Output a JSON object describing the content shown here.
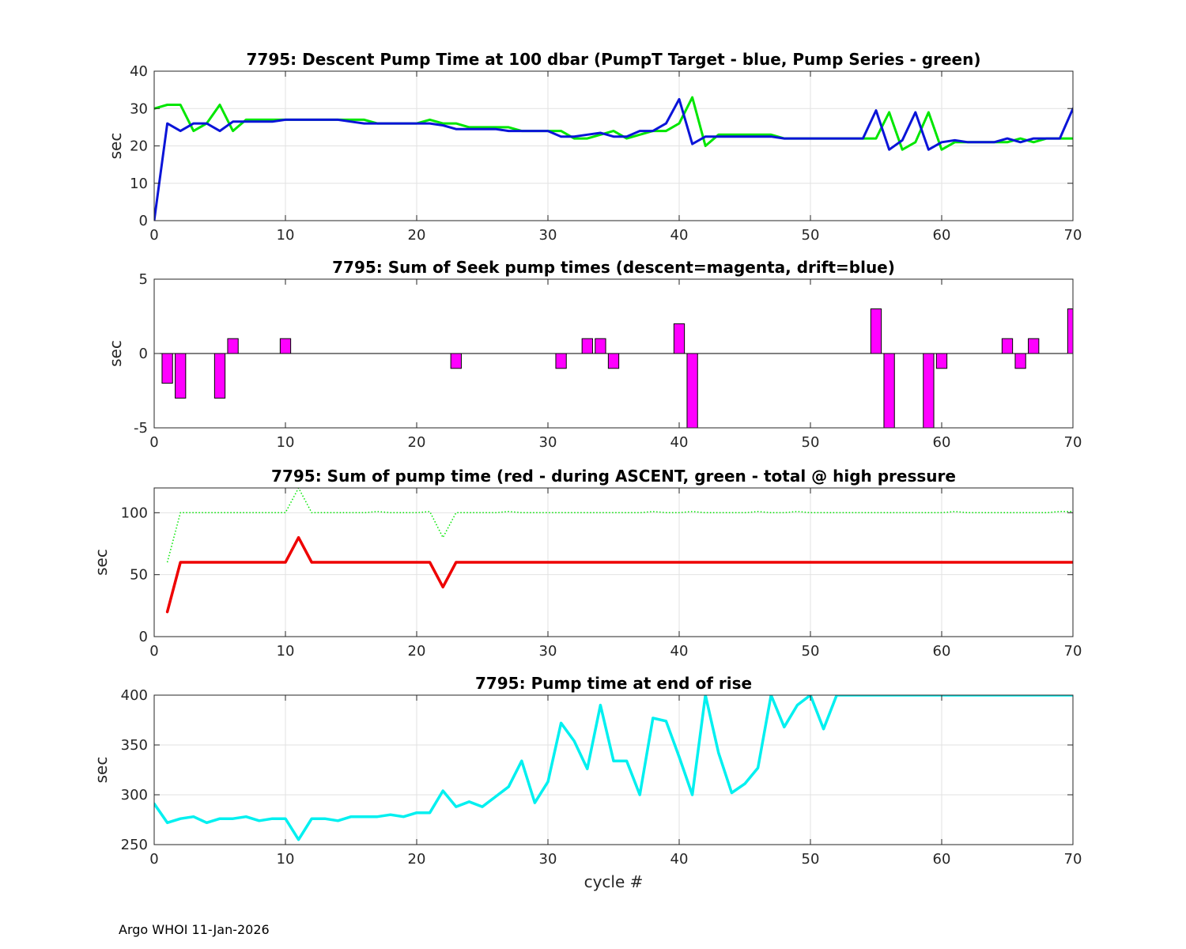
{
  "footer": "Argo WHOI 11-Jan-2026",
  "chart_data": [
    {
      "type": "line",
      "title": "7795: Descent Pump Time at 100 dbar (PumpT Target - blue, Pump Series - green)",
      "xlabel": "",
      "ylabel": "sec",
      "xlim": [
        0,
        70
      ],
      "ylim": [
        0,
        40
      ],
      "xticks": [
        0,
        10,
        20,
        30,
        40,
        50,
        60,
        70
      ],
      "yticks": [
        0,
        10,
        20,
        30,
        40
      ],
      "grid": true,
      "series": [
        {
          "color": "#00e600",
          "width": 3,
          "style": "solid",
          "x": [
            0,
            1,
            2,
            3,
            4,
            5,
            6,
            7,
            8,
            9,
            10,
            11,
            12,
            13,
            14,
            15,
            16,
            17,
            18,
            19,
            20,
            21,
            22,
            23,
            24,
            25,
            26,
            27,
            28,
            29,
            30,
            31,
            32,
            33,
            34,
            35,
            36,
            37,
            38,
            39,
            40,
            41,
            42,
            43,
            44,
            45,
            46,
            47,
            48,
            49,
            50,
            51,
            52,
            53,
            54,
            55,
            56,
            57,
            58,
            59,
            60,
            61,
            62,
            63,
            64,
            65,
            66,
            67,
            68,
            69,
            70
          ],
          "values": [
            30,
            31,
            31,
            24,
            26,
            31,
            24,
            27,
            27,
            27,
            27,
            27,
            27,
            27,
            27,
            27,
            27,
            26,
            26,
            26,
            26,
            27,
            26,
            26,
            25,
            25,
            25,
            25,
            24,
            24,
            24,
            24,
            22,
            22,
            23,
            24,
            22,
            23,
            24,
            24,
            26,
            33,
            20,
            23,
            23,
            23,
            23,
            23,
            22,
            22,
            22,
            22,
            22,
            22,
            22,
            22,
            29,
            19,
            21,
            29,
            19,
            21,
            21,
            21,
            21,
            21,
            22,
            21,
            22,
            22,
            22
          ]
        },
        {
          "color": "#0a14d8",
          "width": 3,
          "style": "solid",
          "x": [
            0,
            1,
            2,
            3,
            4,
            5,
            6,
            7,
            8,
            9,
            10,
            11,
            12,
            13,
            14,
            15,
            16,
            17,
            18,
            19,
            20,
            21,
            22,
            23,
            24,
            25,
            26,
            27,
            28,
            29,
            30,
            31,
            32,
            33,
            34,
            35,
            36,
            37,
            38,
            39,
            40,
            41,
            42,
            43,
            44,
            45,
            46,
            47,
            48,
            49,
            50,
            51,
            52,
            53,
            54,
            55,
            56,
            57,
            58,
            59,
            60,
            61,
            62,
            63,
            64,
            65,
            66,
            67,
            68,
            69,
            70
          ],
          "values": [
            0,
            26,
            24,
            26,
            26,
            24,
            26.5,
            26.5,
            26.5,
            26.5,
            27,
            27,
            27,
            27,
            27,
            26.5,
            26,
            26,
            26,
            26,
            26,
            26,
            25.5,
            24.5,
            24.5,
            24.5,
            24.5,
            24,
            24,
            24,
            24,
            22.5,
            22.5,
            23,
            23.5,
            22.5,
            22.5,
            24,
            24,
            26,
            32.5,
            20.5,
            22.5,
            22.5,
            22.5,
            22.5,
            22.5,
            22.5,
            22,
            22,
            22,
            22,
            22,
            22,
            22,
            29.5,
            19,
            21.5,
            29,
            19,
            21,
            21.5,
            21,
            21,
            21,
            22,
            21,
            22,
            22,
            22,
            30
          ]
        }
      ]
    },
    {
      "type": "bar",
      "title": "7795: Sum of Seek pump times (descent=magenta, drift=blue)",
      "xlabel": "",
      "ylabel": "sec",
      "xlim": [
        0,
        70
      ],
      "ylim": [
        -5,
        5
      ],
      "xticks": [
        0,
        10,
        20,
        30,
        40,
        50,
        60,
        70
      ],
      "yticks": [
        -5,
        0,
        5
      ],
      "grid": false,
      "bar_color": "#ff00ff",
      "x": [
        1,
        2,
        5,
        6,
        10,
        23,
        31,
        33,
        34,
        35,
        40,
        41,
        55,
        56,
        59,
        60,
        65,
        66,
        67,
        70
      ],
      "values": [
        -2,
        -3,
        -3,
        1,
        1,
        -1,
        -1,
        1,
        1,
        -1,
        2,
        -7,
        3,
        -6,
        -6,
        -1,
        1,
        -1,
        1,
        3
      ]
    },
    {
      "type": "line",
      "title": "7795: Sum of pump time (red - during ASCENT, green - total @ high pressure",
      "xlabel": "",
      "ylabel": "sec",
      "xlim": [
        0,
        70
      ],
      "ylim": [
        0,
        120
      ],
      "xticks": [
        0,
        10,
        20,
        30,
        40,
        50,
        60,
        70
      ],
      "yticks": [
        0,
        50,
        100
      ],
      "grid": true,
      "series": [
        {
          "color": "#00e600",
          "width": 1.5,
          "style": "dotted",
          "x": [
            1,
            2,
            3,
            4,
            5,
            6,
            7,
            8,
            9,
            10,
            11,
            12,
            13,
            14,
            15,
            16,
            17,
            18,
            19,
            20,
            21,
            22,
            23,
            24,
            25,
            26,
            27,
            28,
            29,
            30,
            31,
            32,
            33,
            34,
            35,
            36,
            37,
            38,
            39,
            40,
            41,
            42,
            43,
            44,
            45,
            46,
            47,
            48,
            49,
            50,
            51,
            52,
            53,
            54,
            55,
            56,
            57,
            58,
            59,
            60,
            61,
            62,
            63,
            64,
            65,
            66,
            67,
            68,
            69,
            70
          ],
          "values": [
            60,
            100,
            100,
            100,
            100,
            100,
            100,
            100,
            100,
            100,
            120,
            100,
            100,
            100,
            100,
            100,
            101,
            100,
            100,
            100,
            101,
            80,
            100,
            100,
            100,
            100,
            101,
            100,
            100,
            100,
            100,
            100,
            100,
            100,
            100,
            100,
            100,
            101,
            100,
            100,
            101,
            100,
            100,
            100,
            100,
            101,
            100,
            100,
            101,
            100,
            100,
            100,
            100,
            100,
            100,
            100,
            100,
            100,
            100,
            100,
            101,
            100,
            100,
            100,
            100,
            100,
            100,
            100,
            101,
            101
          ]
        },
        {
          "color": "#ee0000",
          "width": 3.5,
          "style": "solid",
          "x": [
            1,
            2,
            3,
            4,
            5,
            6,
            7,
            8,
            9,
            10,
            11,
            12,
            13,
            14,
            15,
            16,
            17,
            18,
            19,
            20,
            21,
            22,
            23,
            24,
            25,
            26,
            27,
            28,
            29,
            30,
            31,
            32,
            33,
            34,
            35,
            36,
            37,
            38,
            39,
            40,
            41,
            42,
            43,
            44,
            45,
            46,
            47,
            48,
            49,
            50,
            51,
            52,
            53,
            54,
            55,
            56,
            57,
            58,
            59,
            60,
            61,
            62,
            63,
            64,
            65,
            66,
            67,
            68,
            69,
            70
          ],
          "values": [
            20,
            60,
            60,
            60,
            60,
            60,
            60,
            60,
            60,
            60,
            80,
            60,
            60,
            60,
            60,
            60,
            60,
            60,
            60,
            60,
            60,
            40,
            60,
            60,
            60,
            60,
            60,
            60,
            60,
            60,
            60,
            60,
            60,
            60,
            60,
            60,
            60,
            60,
            60,
            60,
            60,
            60,
            60,
            60,
            60,
            60,
            60,
            60,
            60,
            60,
            60,
            60,
            60,
            60,
            60,
            60,
            60,
            60,
            60,
            60,
            60,
            60,
            60,
            60,
            60,
            60,
            60,
            60,
            60,
            60
          ]
        }
      ]
    },
    {
      "type": "line",
      "title": "7795: Pump time at end of rise",
      "xlabel": "cycle #",
      "ylabel": "sec",
      "xlim": [
        0,
        70
      ],
      "ylim": [
        250,
        400
      ],
      "xticks": [
        0,
        10,
        20,
        30,
        40,
        50,
        60,
        70
      ],
      "yticks": [
        250,
        300,
        350,
        400
      ],
      "grid": true,
      "series": [
        {
          "color": "#00f0f0",
          "width": 3.5,
          "style": "solid",
          "x": [
            0,
            1,
            2,
            3,
            4,
            5,
            6,
            7,
            8,
            9,
            10,
            11,
            12,
            13,
            14,
            15,
            16,
            17,
            18,
            19,
            20,
            21,
            22,
            23,
            24,
            25,
            26,
            27,
            28,
            29,
            30,
            31,
            32,
            33,
            34,
            35,
            36,
            37,
            38,
            39,
            40,
            41,
            42,
            43,
            44,
            45,
            46,
            47,
            48,
            49,
            50,
            51,
            52,
            53,
            54,
            55,
            56,
            57,
            58,
            59,
            60,
            61,
            62,
            63,
            64,
            65,
            66,
            67,
            68,
            69,
            70
          ],
          "values": [
            291,
            272,
            276,
            278,
            272,
            276,
            276,
            278,
            274,
            276,
            276,
            255,
            276,
            276,
            274,
            278,
            278,
            278,
            280,
            278,
            282,
            282,
            304,
            288,
            293,
            288,
            298,
            308,
            334,
            292,
            313,
            372,
            354,
            326,
            390,
            334,
            334,
            300,
            377,
            374,
            338,
            300,
            400,
            342,
            302,
            311,
            327,
            400,
            368,
            390,
            400,
            366,
            400,
            400,
            400,
            400,
            400,
            400,
            400,
            400,
            400,
            400,
            400,
            400,
            400,
            400,
            400,
            400,
            400,
            400,
            400
          ]
        }
      ]
    }
  ]
}
